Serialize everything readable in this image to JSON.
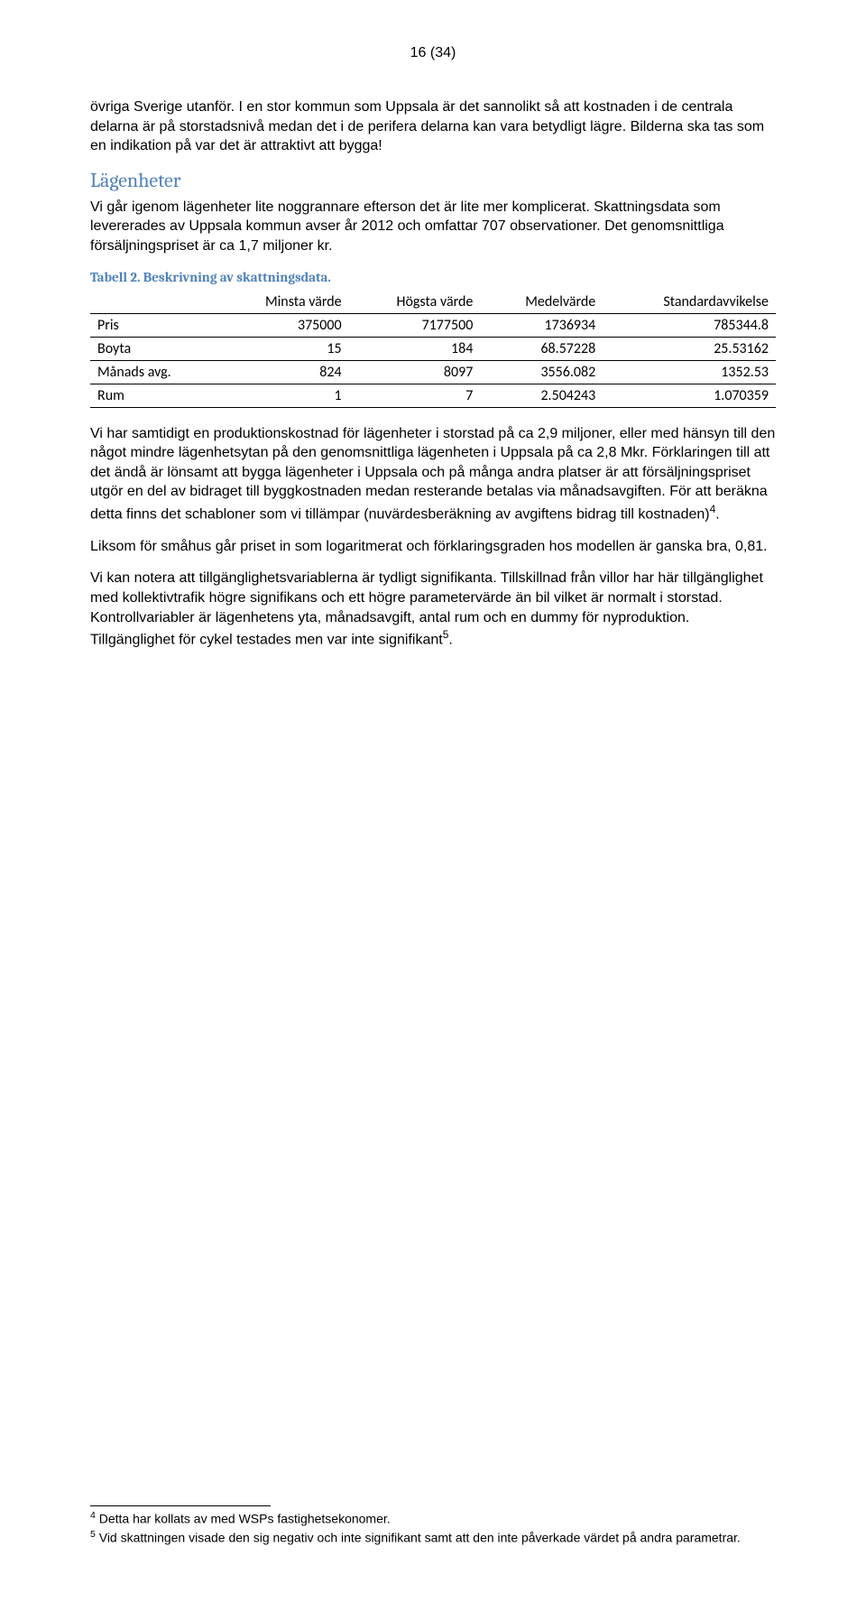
{
  "page_number": "16 (34)",
  "section_color": "#4f81bd",
  "caption_color": "#4f81bd",
  "para1": "övriga Sverige utanför. I en stor kommun som Uppsala är det sannolikt så att kostnaden i de centrala delarna är på storstadsnivå medan det i de perifera delarna kan vara betydligt lägre. Bilderna ska tas som en indikation på var det är attraktivt att bygga!",
  "section_heading": "Lägenheter",
  "para2": "Vi går igenom lägenheter lite noggrannare efterson det är lite mer komplicerat. Skattningsdata som levererades av Uppsala kommun avser år 2012 och omfattar 707 observationer. Det genomsnittliga försäljningspriset är ca 1,7 miljoner kr.",
  "table_caption": "Tabell 2. Beskrivning av skattningsdata.",
  "table": {
    "columns": [
      "",
      "Minsta värde",
      "Högsta värde",
      "Medelvärde",
      "Standardavvikelse"
    ],
    "rows": [
      [
        "Pris",
        "375000",
        "7177500",
        "1736934",
        "785344.8"
      ],
      [
        "Boyta",
        "15",
        "184",
        "68.57228",
        "25.53162"
      ],
      [
        "Månads avg.",
        "824",
        "8097",
        "3556.082",
        "1352.53"
      ],
      [
        "Rum",
        "1",
        "7",
        "2.504243",
        "1.070359"
      ]
    ],
    "border_color": "#000000",
    "cell_fontsize": 16
  },
  "para3_pre": "Vi har samtidigt en produktionskostnad för lägenheter i storstad på ca 2,9 miljoner, eller med hänsyn till den något mindre lägenhetsytan på den genomsnittliga lägenheten i Uppsala på ca 2,8 Mkr. Förklaringen till att det ändå är lönsamt att bygga lägenheter i Uppsala och på många andra platser är att försäljningspriset utgör en del av bidraget till byggkostnaden medan resterande betalas via månadsavgiften. För att beräkna detta finns det schabloner som vi tillämpar (nuvärdesberäkning av avgiftens bidrag till kostnaden)",
  "fn4_mark": "4",
  "para3_post": ".",
  "para4": "Liksom för småhus går priset in som logaritmerat och förklaringsgraden hos modellen är ganska bra, 0,81.",
  "para5_pre": "Vi kan notera att tillgänglighetsvariablerna är tydligt signifikanta. Tillskillnad från villor har här tillgänglighet med kollektivtrafik högre signifikans och ett högre parametervärde än bil vilket är normalt i storstad. Kontrollvariabler är lägenhetens yta, månadsavgift, antal rum och en dummy för nyproduktion. Tillgänglighet för cykel testades men var inte signifikant",
  "fn5_mark": "5",
  "para5_post": ".",
  "footnote4_mark": "4",
  "footnote4": " Detta har kollats av med WSPs fastighetsekonomer.",
  "footnote5_mark": "5",
  "footnote5": " Vid skattningen visade den sig negativ och inte signifikant samt att den inte påverkade värdet på andra parametrar."
}
